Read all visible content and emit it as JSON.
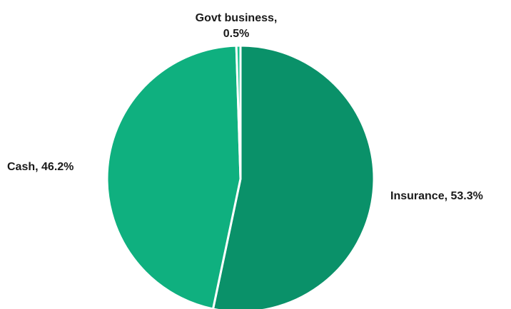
{
  "chart_data": {
    "type": "pie",
    "slices": [
      {
        "label": "Insurance",
        "value": 53.3,
        "display": "53.3%",
        "color": "#0a9169"
      },
      {
        "label": "Cash",
        "value": 46.2,
        "display": "46.2%",
        "color": "#0fb07f"
      },
      {
        "label": "Govt business",
        "value": 0.5,
        "display": "0.5%",
        "color": "#19c48f"
      }
    ],
    "label_text": [
      "Insurance, 53.3%",
      "Cash, 46.2%",
      "Govt business,",
      "0.5%"
    ],
    "title": "",
    "legend": "none",
    "start_angle_deg": 0,
    "direction": "clockwise"
  }
}
